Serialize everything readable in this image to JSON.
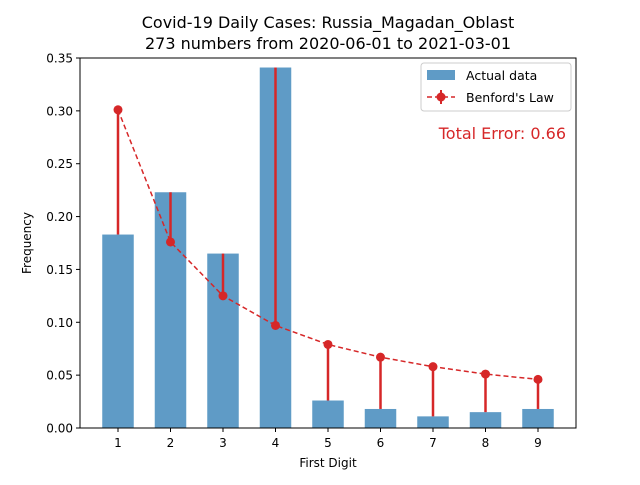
{
  "chart_data": {
    "type": "bar",
    "title": "Covid-19 Daily Cases: Russia_Magadan_Oblast",
    "subtitle": "273 numbers from 2020-06-01 to 2021-03-01",
    "xlabel": "First Digit",
    "ylabel": "Frequency",
    "categories": [
      "1",
      "2",
      "3",
      "4",
      "5",
      "6",
      "7",
      "8",
      "9"
    ],
    "ylim": [
      0,
      0.35
    ],
    "yticks": [
      0.0,
      0.05,
      0.1,
      0.15,
      0.2,
      0.25,
      0.3,
      0.35
    ],
    "ytick_labels": [
      "0.00",
      "0.05",
      "0.10",
      "0.15",
      "0.20",
      "0.25",
      "0.30",
      "0.35"
    ],
    "series": [
      {
        "name": "Actual data",
        "kind": "bar",
        "color": "#5f9bc6",
        "values": [
          0.183,
          0.223,
          0.165,
          0.341,
          0.026,
          0.018,
          0.011,
          0.015,
          0.018
        ]
      },
      {
        "name": "Benford's Law",
        "kind": "line-with-error",
        "color": "#d62728",
        "values": [
          0.301,
          0.176,
          0.125,
          0.097,
          0.079,
          0.067,
          0.058,
          0.051,
          0.046
        ]
      }
    ],
    "legend_position": "top-right",
    "annotation": "Total Error: 0.66",
    "grid": false
  }
}
